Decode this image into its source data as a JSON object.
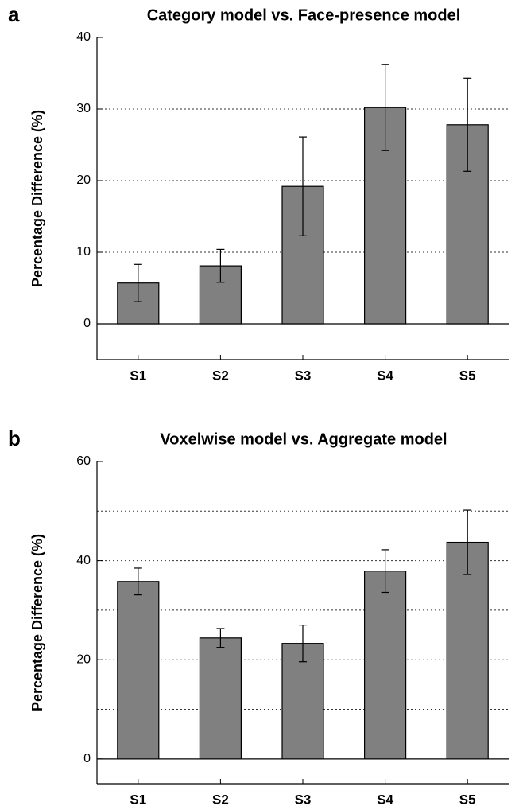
{
  "chart_data": [
    {
      "type": "bar",
      "panel": "a",
      "title": "Category model vs. Face-presence model",
      "y_label": "Percentage Difference (%)",
      "categories": [
        "S1",
        "S2",
        "S3",
        "S4",
        "S5"
      ],
      "values": [
        5.7,
        8.1,
        19.2,
        30.2,
        27.8
      ],
      "errors": [
        2.6,
        2.3,
        6.9,
        6.0,
        6.5
      ],
      "color": "#808080",
      "ylim": [
        -5,
        40
      ],
      "yticks": [
        0,
        10,
        20,
        30,
        40
      ],
      "grid_lines": [
        10,
        20,
        30
      ]
    },
    {
      "type": "bar",
      "panel": "b",
      "title": "Voxelwise  model vs. Aggregate model",
      "y_label": "Percentage Difference (%)",
      "categories": [
        "S1",
        "S2",
        "S3",
        "S4",
        "S5"
      ],
      "values": [
        35.8,
        24.4,
        23.3,
        37.9,
        43.7
      ],
      "errors": [
        2.7,
        1.9,
        3.7,
        4.3,
        6.5
      ],
      "color": "#808080",
      "ylim": [
        -5,
        60
      ],
      "yticks": [
        0,
        20,
        40,
        60
      ],
      "grid_lines": [
        10,
        20,
        30,
        40,
        50
      ]
    }
  ]
}
